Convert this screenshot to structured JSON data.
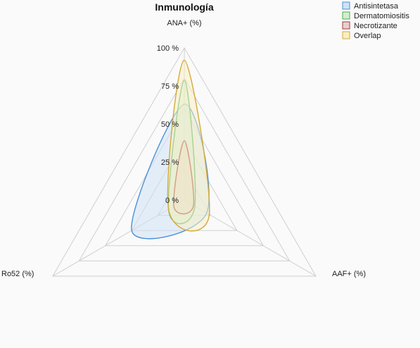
{
  "chart_data": {
    "type": "radar",
    "title": "Inmunología",
    "axes": [
      "ANA+ (%)",
      "AAF+ (%)",
      "Ro52 (%)"
    ],
    "rlim": [
      0,
      100
    ],
    "ticks": [
      "0 %",
      "25 %",
      "50 %",
      "75 %",
      "100 %"
    ],
    "tick_values": [
      0,
      25,
      50,
      75,
      100
    ],
    "legend_position": "top-right",
    "series": [
      {
        "name": "Antisintetasa",
        "values": [
          63,
          17,
          40
        ],
        "color": "#4a90d9",
        "fill": "#cfe2f5"
      },
      {
        "name": "Dermatomiositis",
        "values": [
          79,
          8,
          12
        ],
        "color": "#4caf50",
        "fill": "#d4ecd2"
      },
      {
        "name": "Necrotizante",
        "values": [
          39,
          7,
          8
        ],
        "color": "#a33a3a",
        "fill": "#e8cfcf"
      },
      {
        "name": "Overlap",
        "values": [
          92,
          19,
          12
        ],
        "color": "#d4a93a",
        "fill": "#f7efc4"
      }
    ]
  }
}
